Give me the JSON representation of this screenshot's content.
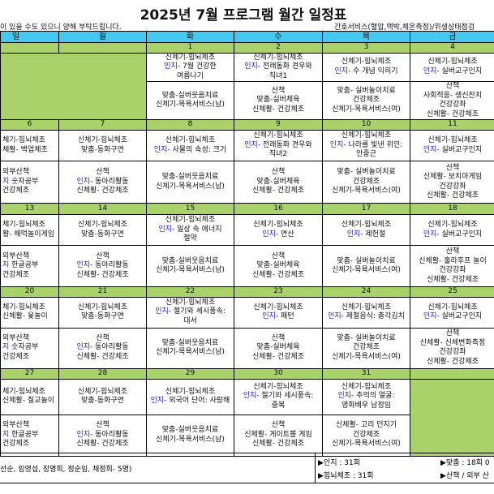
{
  "title": "2025년 7월 프로그램 월간 일정표",
  "subtitle_left": "이 있을 수도 있으니 양해 부탁드립니다.",
  "subtitle_right": "간호서비스(혈압,맥박,체온측정)/위생상태점검",
  "colors": {
    "header": "#45c8f0",
    "date_row": "#a9d26a",
    "sunday": "#e00000",
    "cognitive": "#1a1adc"
  },
  "weekdays": [
    "일",
    "월",
    "화",
    "수",
    "목",
    "금"
  ],
  "weeks": [
    {
      "dates": [
        "",
        "",
        "1",
        "2",
        "3",
        "4"
      ],
      "r1": [
        null,
        null,
        [
          {
            "t": "신체기-힘뇌체조"
          },
          {
            "tag": "인지",
            "t": "- 7월 건강한"
          },
          {
            "t": "여름나기"
          }
        ],
        [
          {
            "t": "신체기-힘뇌체조"
          },
          {
            "tag": "인지",
            "t": "- 전래동화 견우와"
          },
          {
            "t": "직녀1"
          }
        ],
        [
          {
            "t": "신체기-힘뇌체조"
          },
          {
            "tag": "인지",
            "t": "- 수 개념 익히기"
          }
        ],
        [
          {
            "t": "신체기-힘뇌체조"
          },
          {
            "tag": "인지",
            "t": "- 실버교구인지"
          }
        ]
      ],
      "r2": [
        null,
        null,
        [
          {
            "t": "맞춤-실버웃음치료"
          },
          {
            "t": "신체기-목욕서비스(남)"
          }
        ],
        [
          {
            "t": "산책"
          },
          {
            "t": "맞춤-실버체육"
          },
          {
            "t": "신체활- 건강체조"
          }
        ],
        [
          {
            "t": "맞춤- 실버놀이치료"
          },
          {
            "t": "건강체조"
          },
          {
            "t": "신체기-목욕서비스(여)"
          }
        ],
        [
          {
            "t": "산책"
          },
          {
            "t": "사회적응- 생신잔치"
          },
          {
            "t": "건강강좌"
          },
          {
            "t": "신체활- 건강체조"
          }
        ]
      ]
    },
    {
      "dates": [
        "6",
        "7",
        "8",
        "9",
        "10",
        "11"
      ],
      "r1": [
        [
          {
            "t": "체기-힘뇌체조"
          },
          {
            "t": "체활- 백업체조"
          }
        ],
        [
          {
            "t": "신체기-힘뇌체조"
          },
          {
            "t": "맞춤-동화구연"
          }
        ],
        [
          {
            "t": "신체기-힘뇌체조"
          },
          {
            "tag": "인지",
            "t": "- 사물의 속성: 크기"
          }
        ],
        [
          {
            "t": "신체기-힘뇌체조"
          },
          {
            "tag": "인지",
            "t": "- 전래동화 견우와"
          },
          {
            "t": "직녀2"
          }
        ],
        [
          {
            "t": "신체기-힘뇌체조"
          },
          {
            "tag": "인지",
            "t": "- 나라를 빛낸 위인:"
          },
          {
            "t": "안중근"
          }
        ],
        [
          {
            "t": "신체기-힘뇌체조"
          },
          {
            "tag": "인지",
            "t": "- 실버교구인지"
          }
        ]
      ],
      "r2": [
        [
          {
            "t": "외부산책"
          },
          {
            "tag": "지",
            "t": " 숫자공부"
          },
          {
            "t": "건강체조"
          }
        ],
        [
          {
            "t": "산책"
          },
          {
            "tag": "인지",
            "t": "- 동아리활동"
          },
          {
            "t": "신체활- 건강체조"
          }
        ],
        [
          {
            "t": "맞춤-실버웃음치료"
          },
          {
            "t": "신체기-목욕서비스(남)"
          }
        ],
        [
          {
            "t": "산책"
          },
          {
            "t": "맞춤-실버체육"
          },
          {
            "t": "신체활- 건강체조"
          }
        ],
        [
          {
            "t": "맞춤- 실버놀이치료"
          },
          {
            "t": "건강체조"
          },
          {
            "t": "신체기-목욕서비스(여)"
          }
        ],
        [
          {
            "t": "산책"
          },
          {
            "t": "신체활- 보치아게임"
          },
          {
            "t": "건강강좌"
          },
          {
            "t": "신체활- 건강체조"
          }
        ]
      ]
    },
    {
      "dates": [
        "13",
        "14",
        "15",
        "16",
        "17",
        "18"
      ],
      "r1": [
        [
          {
            "t": "체기-힘뇌체조"
          },
          {
            "t": "활- 해먹놀이게임"
          }
        ],
        [
          {
            "t": "신체기-힘뇌체조"
          },
          {
            "t": "맞춤-동화구연"
          }
        ],
        [
          {
            "t": "신체기-힘뇌체조"
          },
          {
            "tag": "인지",
            "t": "- 일상 속 에너지"
          },
          {
            "t": "절약"
          }
        ],
        [
          {
            "t": "신체기-힘뇌체조"
          },
          {
            "tag": "인지",
            "t": "- 연산"
          }
        ],
        [
          {
            "t": "신체기-힘뇌체조"
          },
          {
            "tag": "인지",
            "t": "- 제헌절"
          }
        ],
        [
          {
            "t": "신체기-힘뇌체조"
          },
          {
            "tag": "인지",
            "t": "- 실버교구인지"
          }
        ]
      ],
      "r2": [
        [
          {
            "t": "외부산책"
          },
          {
            "tag": "지",
            "t": " 한글공부"
          },
          {
            "t": "건강체조"
          }
        ],
        [
          {
            "t": "산책"
          },
          {
            "tag": "인지",
            "t": "- 동아리활동"
          },
          {
            "t": "신체활- 건강체조"
          }
        ],
        [
          {
            "t": "맞춤-실버웃음치료"
          },
          {
            "t": "신체기-목욕서비스(남)"
          }
        ],
        [
          {
            "t": "산책"
          },
          {
            "t": "맞춤-실버체육"
          },
          {
            "t": "신체활- 건강체조"
          }
        ],
        [
          {
            "t": "맞춤- 실버놀이치료"
          },
          {
            "t": "신체기-목욕서비스(여)"
          }
        ],
        [
          {
            "t": "산책"
          },
          {
            "t": "신체활- 훌라후프 놀이"
          },
          {
            "t": "건강강좌"
          },
          {
            "t": "신체활- 건강체조"
          }
        ]
      ]
    },
    {
      "dates": [
        "20",
        "21",
        "22",
        "23",
        "24",
        "25"
      ],
      "r1": [
        [
          {
            "t": "체기-힘뇌체조"
          },
          {
            "t": "신체활- 윷놀이"
          }
        ],
        [
          {
            "t": "신체기-힘뇌체조"
          },
          {
            "t": "맞춤-동화구연"
          }
        ],
        [
          {
            "t": "신체기-힘뇌체조"
          },
          {
            "tag": "인지",
            "t": "- 절기와 세시풍속:"
          },
          {
            "t": "대서"
          }
        ],
        [
          {
            "t": "신체기-힘뇌체조"
          },
          {
            "tag": "인지",
            "t": "- 패턴"
          }
        ],
        [
          {
            "t": "신체기-힘뇌체조"
          },
          {
            "tag": "인지",
            "t": "- 제철음식: 총각김치"
          }
        ],
        [
          {
            "t": "신체기-힘뇌체조"
          },
          {
            "tag": "인지",
            "t": "- 실버교구인지"
          }
        ]
      ],
      "r2": [
        [
          {
            "t": "외부산책"
          },
          {
            "tag": "지",
            "t": " 숫자공부"
          },
          {
            "t": "건강체조"
          }
        ],
        [
          {
            "t": "산책"
          },
          {
            "tag": "인지",
            "t": "- 동아리활동"
          },
          {
            "t": "신체활- 건강체조"
          }
        ],
        [
          {
            "t": "맞춤-실버웃음치료"
          },
          {
            "t": "신체기-목욕서비스(남)"
          }
        ],
        [
          {
            "t": "산책"
          },
          {
            "t": "맞춤-실버체육"
          },
          {
            "t": "신체활- 건강체조"
          }
        ],
        [
          {
            "t": "맞춤- 실버놀이치료"
          },
          {
            "t": "건강체조"
          },
          {
            "t": "신체기-목욕서비스(여)"
          }
        ],
        [
          {
            "t": "산책"
          },
          {
            "t": "신체활- 신체변화측정"
          },
          {
            "t": "건강강좌"
          },
          {
            "t": "신체활- 건강체조"
          }
        ]
      ]
    },
    {
      "dates": [
        "27",
        "28",
        "29",
        "30",
        "31",
        ""
      ],
      "r1": [
        [
          {
            "t": "체기-힘뇌체조"
          },
          {
            "t": "신체활- 칠교놀이"
          }
        ],
        [
          {
            "t": "신체기-힘뇌체조"
          },
          {
            "t": "맞춤-동화구연"
          }
        ],
        [
          {
            "t": "신체기-힘뇌체조"
          },
          {
            "tag": "인지",
            "t": "- 외국어 단어: 사랑해"
          }
        ],
        [
          {
            "t": "신체기-힘뇌체조"
          },
          {
            "tag": "인지",
            "t": "- 절기와 세시풍속:"
          },
          {
            "t": "중복"
          }
        ],
        [
          {
            "t": "신체기-힘뇌체조"
          },
          {
            "tag": "인지",
            "t": "- 추억의 얼굴:"
          },
          {
            "t": "영화배우 남정임"
          }
        ],
        null
      ],
      "r2": [
        [
          {
            "t": "외부산책"
          },
          {
            "tag": "지",
            "t": " 한글공부"
          },
          {
            "t": "건강체조"
          }
        ],
        [
          {
            "t": "산책"
          },
          {
            "tag": "인지",
            "t": "- 동아리활동"
          },
          {
            "t": "신체활- 건강체조"
          }
        ],
        [
          {
            "t": "맞춤-실버웃음치료"
          },
          {
            "t": "신체기-목욕서비스(남)"
          }
        ],
        [
          {
            "t": "산책"
          },
          {
            "t": "신체활- 게이트볼 게임"
          },
          {
            "t": "신체활- 건강체조"
          }
        ],
        [
          {
            "t": "신체활- 고리 던지기"
          },
          {
            "t": "건강체조"
          },
          {
            "t": "신체기-목욕서비스(여)"
          }
        ],
        null
      ]
    }
  ],
  "footer": {
    "staff": "선순, 임영섭, 장명희, 정순임, 채정희- 5명)",
    "stat_cognitive": "▶인지 : 31회",
    "stat_exercise": "▶힘뇌체조 : 31회",
    "stat_custom": "▶맞춤 : 18회 0",
    "stat_walk": "▶산책 / 외부 산"
  }
}
